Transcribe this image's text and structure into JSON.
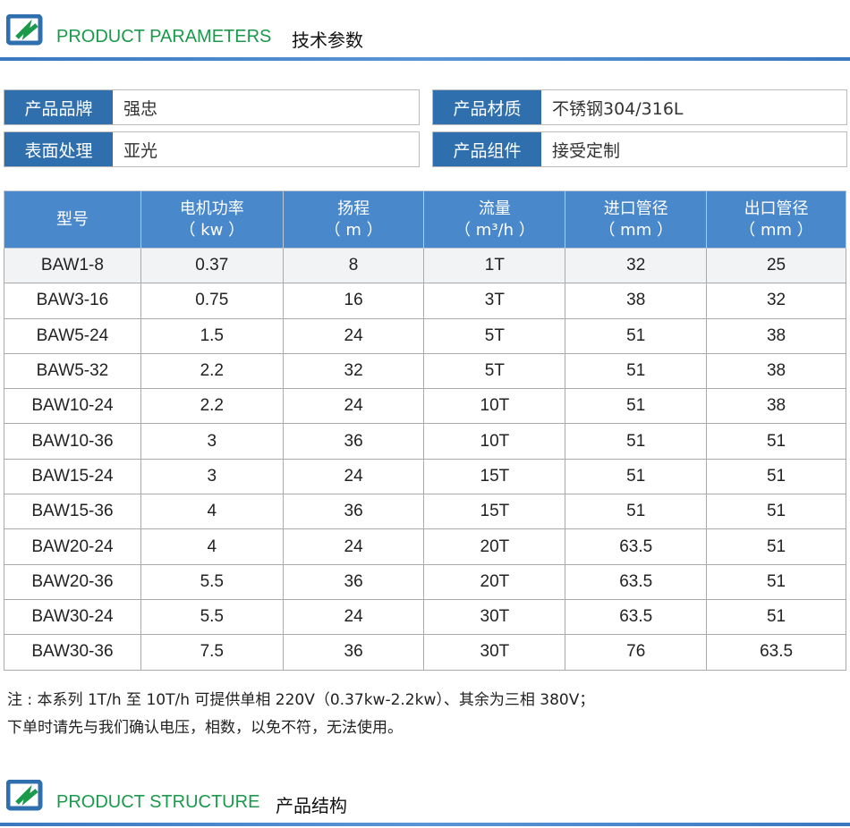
{
  "section1": {
    "title_en": "PRODUCT PARAMETERS",
    "title_cn": "技术参数"
  },
  "info": [
    {
      "label": "产品品牌",
      "value": "强忠"
    },
    {
      "label": "产品材质",
      "value": "不锈钢304/316L"
    },
    {
      "label": "表面处理",
      "value": "亚光"
    },
    {
      "label": "产品组件",
      "value": "接受定制"
    }
  ],
  "table": {
    "headers": [
      [
        "型号",
        ""
      ],
      [
        "电机功率",
        "（ kw ）"
      ],
      [
        "扬程",
        "（ m ）"
      ],
      [
        "流量",
        "（ m³/h ）"
      ],
      [
        "进口管径",
        "（ mm ）"
      ],
      [
        "出口管径",
        "（ mm ）"
      ]
    ],
    "rows": [
      [
        "BAW1-8",
        "0.37",
        "8",
        "1T",
        "32",
        "25"
      ],
      [
        "BAW3-16",
        "0.75",
        "16",
        "3T",
        "38",
        "32"
      ],
      [
        "BAW5-24",
        "1.5",
        "24",
        "5T",
        "51",
        "38"
      ],
      [
        "BAW5-32",
        "2.2",
        "32",
        "5T",
        "51",
        "38"
      ],
      [
        "BAW10-24",
        "2.2",
        "24",
        "10T",
        "51",
        "38"
      ],
      [
        "BAW10-36",
        "3",
        "36",
        "10T",
        "51",
        "51"
      ],
      [
        "BAW15-24",
        "3",
        "24",
        "15T",
        "51",
        "51"
      ],
      [
        "BAW15-36",
        "4",
        "36",
        "15T",
        "51",
        "51"
      ],
      [
        "BAW20-24",
        "4",
        "24",
        "20T",
        "63.5",
        "51"
      ],
      [
        "BAW20-36",
        "5.5",
        "36",
        "20T",
        "63.5",
        "51"
      ],
      [
        "BAW30-24",
        "5.5",
        "24",
        "30T",
        "63.5",
        "51"
      ],
      [
        "BAW30-36",
        "7.5",
        "36",
        "30T",
        "76",
        "63.5"
      ]
    ]
  },
  "note": [
    "注 : 本系列 1T/h 至 10T/h 可提供单相 220V（0.37kw-2.2kw）、其余为三相 380V；",
    "下单时请先与我们确认电压，相数，以免不符，无法使用。"
  ],
  "section2": {
    "title_en": "PRODUCT STRUCTURE",
    "title_cn": "产品结构"
  }
}
